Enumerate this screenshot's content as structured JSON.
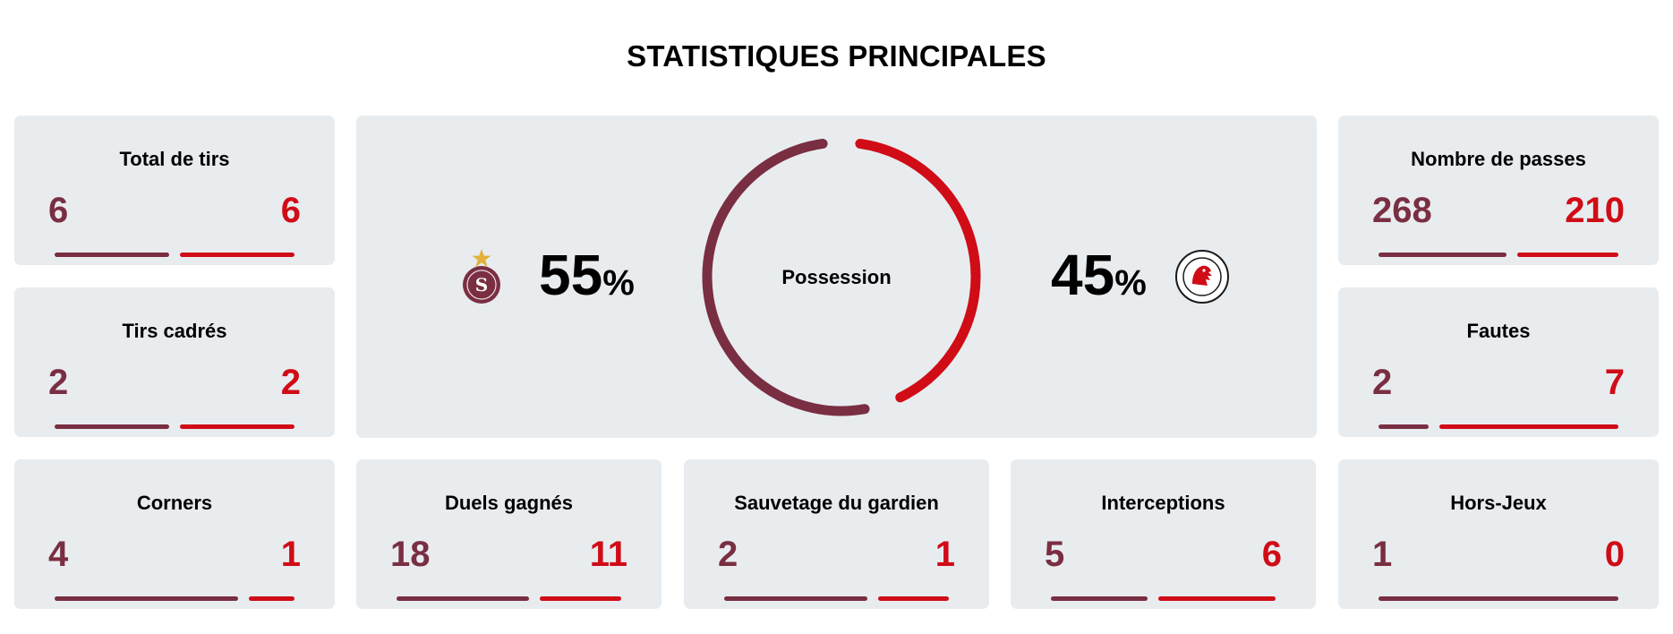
{
  "title": "STATISTIQUES PRINCIPALES",
  "colors": {
    "home": "#7a2e42",
    "away": "#d00c17",
    "card_bg": "#e8ecef"
  },
  "possession": {
    "label": "Possession",
    "home": {
      "value": "55",
      "unit": "%",
      "fraction": 0.55,
      "logo_icon": "servette-crest-icon"
    },
    "away": {
      "value": "45",
      "unit": "%",
      "fraction": 0.45,
      "logo_icon": "winterthur-crest-icon"
    }
  },
  "stats": {
    "total_tirs": {
      "label": "Total de tirs",
      "home": "6",
      "away": "6",
      "home_share": 0.5
    },
    "tirs_cadres": {
      "label": "Tirs cadrés",
      "home": "2",
      "away": "2",
      "home_share": 0.5
    },
    "nombre_passes": {
      "label": "Nombre de passes",
      "home": "268",
      "away": "210",
      "home_share": 0.56
    },
    "fautes": {
      "label": "Fautes",
      "home": "2",
      "away": "7",
      "home_share": 0.22
    },
    "corners": {
      "label": "Corners",
      "home": "4",
      "away": "1",
      "home_share": 0.8
    },
    "duels": {
      "label": "Duels gagnés",
      "home": "18",
      "away": "11",
      "home_share": 0.62
    },
    "sauvetage": {
      "label": "Sauvetage du gardien",
      "home": "2",
      "away": "1",
      "home_share": 0.67
    },
    "interceptions": {
      "label": "Interceptions",
      "home": "5",
      "away": "6",
      "home_share": 0.45
    },
    "hors_jeux": {
      "label": "Hors-Jeux",
      "home": "1",
      "away": "0",
      "home_share": 1.0
    }
  }
}
